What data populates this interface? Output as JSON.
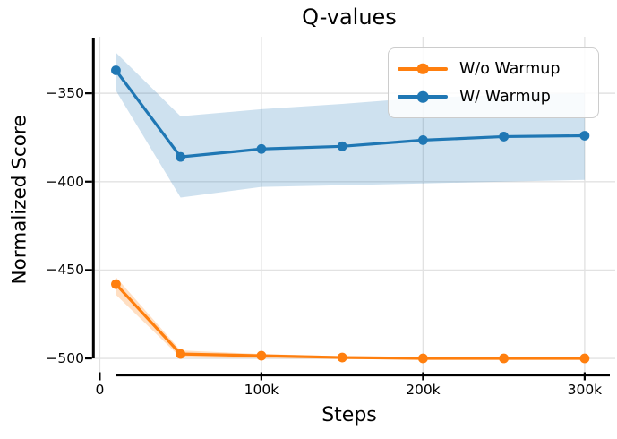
{
  "title": "Q-values",
  "chart_data": {
    "type": "line",
    "title": "Q-values",
    "xlabel": "Steps",
    "ylabel": "Normalized Score",
    "x": [
      10000,
      50000,
      100000,
      150000,
      200000,
      250000,
      300000
    ],
    "series": [
      {
        "name": "W/o Warmup",
        "color": "#ff7f0e",
        "values": [
          -458,
          -497.5,
          -498.5,
          -499.5,
          -500,
          -500,
          -500
        ],
        "band_upper": [
          -454,
          -495.5,
          -497.5,
          -498.8,
          -499.3,
          -499.4,
          -499.4
        ],
        "band_lower": [
          -464,
          -499.5,
          -500,
          -500.3,
          -500.7,
          -500.7,
          -500.7
        ]
      },
      {
        "name": "W/ Warmup",
        "color": "#1f77b4",
        "values": [
          -337,
          -386,
          -381.5,
          -380,
          -376.5,
          -374.5,
          -374
        ],
        "band_upper": [
          -327,
          -363,
          -359,
          -356,
          -352.5,
          -351,
          -350
        ],
        "band_lower": [
          -348.5,
          -409,
          -403,
          -402,
          -401,
          -400,
          -399
        ]
      }
    ],
    "x_ticks": [
      {
        "value": 0,
        "label": "0"
      },
      {
        "value": 100000,
        "label": "100k"
      },
      {
        "value": 200000,
        "label": "200k"
      },
      {
        "value": 300000,
        "label": "300k"
      }
    ],
    "y_ticks": [
      {
        "value": -350,
        "label": "−350"
      },
      {
        "value": -400,
        "label": "−400"
      },
      {
        "value": -450,
        "label": "−450"
      },
      {
        "value": -500,
        "label": "−500"
      }
    ],
    "xlim": [
      -4650,
      318900
    ],
    "ylim": [
      -508.6,
      -318
    ],
    "grid": true,
    "legend_position": "upper right",
    "grid_color": "#e2e2e2"
  },
  "legend": {
    "items": [
      {
        "label": "W/o Warmup",
        "color": "#ff7f0e"
      },
      {
        "label": "W/ Warmup",
        "color": "#1f77b4"
      }
    ]
  }
}
